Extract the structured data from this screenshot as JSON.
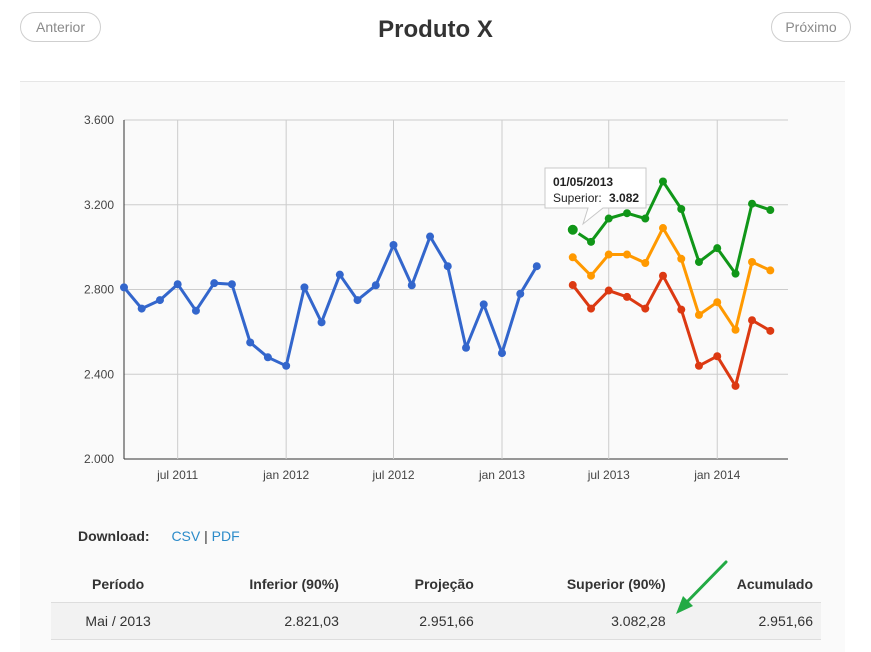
{
  "nav": {
    "prev_label": "Anterior",
    "next_label": "Próximo"
  },
  "page_title": "Produto X",
  "download": {
    "label": "Download:",
    "csv": "CSV",
    "separator": "|",
    "pdf": "PDF"
  },
  "table": {
    "headers": [
      "Período",
      "Inferior (90%)",
      "Projeção",
      "Superior (90%)",
      "Acumulado"
    ],
    "rows": [
      [
        "Mai / 2013",
        "2.821,03",
        "2.951,66",
        "3.082,28",
        "2.951,66"
      ]
    ]
  },
  "colors": {
    "history": "#3366cc",
    "upper": "#109618",
    "projection": "#ff9900",
    "lower": "#dc3912",
    "annotation_arrow": "#22aa44"
  },
  "tooltip": {
    "date": "01/05/2013",
    "series_label": "Superior:",
    "value": "3.082"
  },
  "chart_data": {
    "type": "line",
    "ylim": [
      2000,
      3600
    ],
    "y_ticks": [
      2000,
      2400,
      2800,
      3200,
      3600
    ],
    "y_tick_labels": [
      "2.000",
      "2.400",
      "2.800",
      "3.200",
      "3.600"
    ],
    "x_range": [
      "2011-04-01",
      "2014-05-01"
    ],
    "x_ticks": [
      {
        "date": "2011-07-01",
        "label": "jul 2011"
      },
      {
        "date": "2012-01-01",
        "label": "jan 2012"
      },
      {
        "date": "2012-07-01",
        "label": "jul 2012"
      },
      {
        "date": "2013-01-01",
        "label": "jan 2013"
      },
      {
        "date": "2013-07-01",
        "label": "jul 2013"
      },
      {
        "date": "2014-01-01",
        "label": "jan 2014"
      }
    ],
    "grid": true,
    "legend": "none",
    "series": [
      {
        "key": "history",
        "start": "2011-04-01",
        "values": [
          2810,
          2710,
          2750,
          2825,
          2700,
          2830,
          2825,
          2550,
          2480,
          2440,
          2810,
          2645,
          2870,
          2750,
          2820,
          3010,
          2820,
          3050,
          2910,
          2525,
          2730,
          2500,
          2780,
          2910
        ]
      },
      {
        "key": "upper",
        "start": "2013-05-01",
        "values": [
          3082,
          3025,
          3135,
          3160,
          3135,
          3310,
          3180,
          2930,
          2995,
          2875,
          3205,
          3175
        ]
      },
      {
        "key": "projection",
        "start": "2013-05-01",
        "values": [
          2952,
          2865,
          2965,
          2965,
          2925,
          3090,
          2945,
          2680,
          2740,
          2610,
          2930,
          2890
        ]
      },
      {
        "key": "lower",
        "start": "2013-05-01",
        "values": [
          2821,
          2710,
          2795,
          2765,
          2710,
          2865,
          2705,
          2440,
          2485,
          2345,
          2655,
          2605
        ]
      }
    ]
  }
}
